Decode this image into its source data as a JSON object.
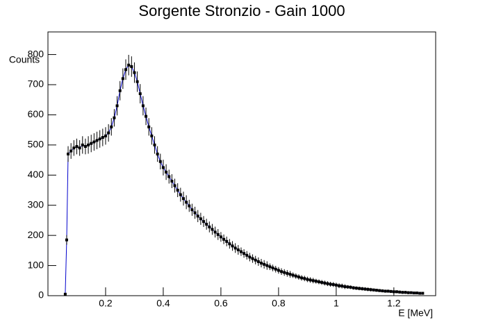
{
  "chart_data": {
    "type": "errorbar",
    "title": "Sorgente Stronzio - Gain 1000",
    "xlabel": "E [MeV]",
    "ylabel": "Counts",
    "x": [
      0.06,
      0.065,
      0.07,
      0.08,
      0.09,
      0.1,
      0.11,
      0.12,
      0.13,
      0.14,
      0.15,
      0.16,
      0.17,
      0.18,
      0.19,
      0.2,
      0.21,
      0.22,
      0.23,
      0.24,
      0.25,
      0.26,
      0.27,
      0.28,
      0.29,
      0.3,
      0.31,
      0.32,
      0.33,
      0.34,
      0.35,
      0.36,
      0.37,
      0.38,
      0.39,
      0.4,
      0.41,
      0.42,
      0.43,
      0.44,
      0.45,
      0.46,
      0.47,
      0.48,
      0.49,
      0.5,
      0.51,
      0.52,
      0.53,
      0.54,
      0.55,
      0.56,
      0.57,
      0.58,
      0.59,
      0.6,
      0.61,
      0.62,
      0.63,
      0.64,
      0.65,
      0.66,
      0.67,
      0.68,
      0.69,
      0.7,
      0.71,
      0.72,
      0.73,
      0.74,
      0.75,
      0.76,
      0.77,
      0.78,
      0.79,
      0.8,
      0.81,
      0.82,
      0.83,
      0.84,
      0.85,
      0.86,
      0.87,
      0.88,
      0.89,
      0.9,
      0.91,
      0.92,
      0.93,
      0.94,
      0.95,
      0.96,
      0.97,
      0.98,
      0.99,
      1.0,
      1.01,
      1.02,
      1.03,
      1.04,
      1.05,
      1.06,
      1.07,
      1.08,
      1.09,
      1.1,
      1.11,
      1.12,
      1.13,
      1.14,
      1.15,
      1.16,
      1.17,
      1.18,
      1.19,
      1.2,
      1.21,
      1.22,
      1.23,
      1.24,
      1.25,
      1.26,
      1.27,
      1.28,
      1.29,
      1.3
    ],
    "values": [
      5,
      185,
      470,
      480,
      490,
      495,
      490,
      500,
      495,
      500,
      505,
      510,
      515,
      520,
      525,
      530,
      540,
      560,
      590,
      630,
      680,
      720,
      750,
      765,
      760,
      740,
      710,
      670,
      630,
      595,
      560,
      530,
      500,
      470,
      445,
      425,
      410,
      395,
      380,
      365,
      350,
      335,
      322,
      310,
      298,
      285,
      275,
      264,
      255,
      246,
      237,
      228,
      220,
      211,
      203,
      195,
      187,
      180,
      172,
      165,
      158,
      152,
      146,
      140,
      134,
      128,
      123,
      118,
      113,
      108,
      104,
      100,
      96,
      92,
      88,
      84,
      80,
      77,
      74,
      71,
      68,
      65,
      62,
      59,
      57,
      54,
      52,
      50,
      48,
      46,
      44,
      42,
      40,
      38,
      37,
      35,
      33,
      32,
      30,
      29,
      28,
      26,
      25,
      24,
      23,
      22,
      21,
      20,
      19,
      18,
      17,
      16,
      15,
      15,
      14,
      13,
      13,
      12,
      11,
      11,
      10,
      10,
      9,
      9,
      8,
      8
    ],
    "errors": [
      4,
      16,
      26,
      26,
      26,
      26,
      26,
      29,
      26,
      29,
      29,
      29,
      29,
      29,
      29,
      29,
      29,
      29,
      29,
      32,
      32,
      34,
      34,
      34,
      34,
      34,
      34,
      32,
      32,
      29,
      29,
      29,
      29,
      26,
      26,
      26,
      26,
      23,
      23,
      23,
      23,
      23,
      23,
      23,
      20,
      20,
      20,
      20,
      20,
      18,
      18,
      18,
      18,
      18,
      18,
      16,
      16,
      16,
      16,
      16,
      16,
      16,
      14,
      14,
      14,
      14,
      14,
      14,
      14,
      14,
      14,
      14,
      11,
      11,
      11,
      11,
      11,
      11,
      11,
      11,
      9,
      9,
      9,
      9,
      9,
      9,
      9,
      9,
      8,
      8,
      8,
      8,
      8,
      8,
      8,
      8,
      8,
      8,
      8,
      6,
      6,
      6,
      6,
      6,
      6,
      6,
      6,
      6,
      5,
      5,
      5,
      5,
      5,
      5,
      5,
      5,
      5,
      5,
      5,
      5,
      5,
      4,
      4,
      4,
      4,
      4
    ],
    "color": "#000000",
    "line_color": "#0000cc",
    "xlim": [
      0,
      1.345
    ],
    "xticks": [
      0.2,
      0.4,
      0.6,
      0.8,
      1,
      1.2
    ],
    "ylim": [
      0,
      875
    ],
    "yticks": [
      0,
      100,
      200,
      300,
      400,
      500,
      600,
      700,
      800
    ]
  }
}
